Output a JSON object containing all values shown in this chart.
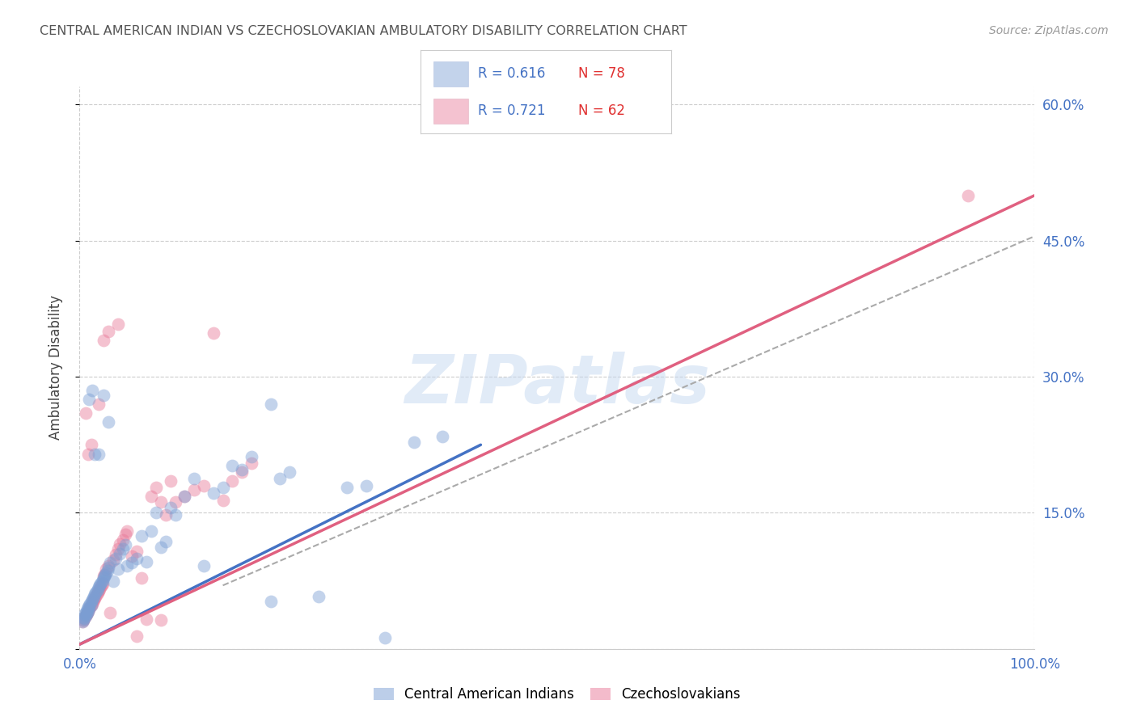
{
  "title": "CENTRAL AMERICAN INDIAN VS CZECHOSLOVAKIAN AMBULATORY DISABILITY CORRELATION CHART",
  "source": "Source: ZipAtlas.com",
  "ylabel": "Ambulatory Disability",
  "watermark": "ZIPatlas",
  "xlim": [
    0.0,
    1.0
  ],
  "ylim": [
    0.0,
    0.62
  ],
  "yticks": [
    0.0,
    0.15,
    0.3,
    0.45,
    0.6
  ],
  "ytick_labels": [
    "",
    "15.0%",
    "30.0%",
    "45.0%",
    "60.0%"
  ],
  "xtick_labels": [
    "0.0%",
    "100.0%"
  ],
  "blue_R": 0.616,
  "blue_N": 78,
  "pink_R": 0.721,
  "pink_N": 62,
  "blue_color": "#7B9FD4",
  "pink_color": "#E87898",
  "blue_legend": "Central American Indians",
  "pink_legend": "Czechoslovakians",
  "legend_R_color": "#4472C4",
  "legend_N_color": "#E03030",
  "axis_label_color": "#4472C4",
  "title_color": "#555555",
  "grid_color": "#CCCCCC",
  "background_color": "#FFFFFF",
  "blue_line_start_x": 0.0,
  "blue_line_start_y": 0.005,
  "blue_line_end_x": 0.42,
  "blue_line_end_y": 0.225,
  "pink_line_start_x": 0.0,
  "pink_line_start_y": 0.005,
  "pink_line_end_x": 1.0,
  "pink_line_end_y": 0.5,
  "dash_line_start_x": 0.15,
  "dash_line_start_y": 0.07,
  "dash_line_end_x": 1.0,
  "dash_line_end_y": 0.455,
  "blue_scatter_x": [
    0.003,
    0.004,
    0.004,
    0.005,
    0.005,
    0.006,
    0.006,
    0.007,
    0.007,
    0.008,
    0.008,
    0.009,
    0.009,
    0.01,
    0.01,
    0.011,
    0.012,
    0.012,
    0.013,
    0.014,
    0.015,
    0.016,
    0.017,
    0.018,
    0.019,
    0.02,
    0.021,
    0.022,
    0.023,
    0.024,
    0.025,
    0.026,
    0.027,
    0.028,
    0.029,
    0.03,
    0.032,
    0.035,
    0.038,
    0.04,
    0.042,
    0.045,
    0.048,
    0.05,
    0.055,
    0.06,
    0.065,
    0.07,
    0.075,
    0.08,
    0.085,
    0.09,
    0.095,
    0.1,
    0.11,
    0.12,
    0.13,
    0.14,
    0.15,
    0.16,
    0.17,
    0.18,
    0.2,
    0.21,
    0.22,
    0.25,
    0.28,
    0.3,
    0.32,
    0.35,
    0.38,
    0.01,
    0.013,
    0.016,
    0.02,
    0.025,
    0.03,
    0.2
  ],
  "blue_scatter_y": [
    0.03,
    0.032,
    0.035,
    0.034,
    0.038,
    0.036,
    0.04,
    0.038,
    0.042,
    0.04,
    0.044,
    0.042,
    0.046,
    0.044,
    0.048,
    0.05,
    0.048,
    0.052,
    0.054,
    0.056,
    0.058,
    0.06,
    0.062,
    0.064,
    0.066,
    0.068,
    0.07,
    0.072,
    0.074,
    0.076,
    0.078,
    0.08,
    0.082,
    0.084,
    0.086,
    0.09,
    0.095,
    0.075,
    0.1,
    0.088,
    0.105,
    0.11,
    0.115,
    0.092,
    0.095,
    0.1,
    0.125,
    0.096,
    0.13,
    0.15,
    0.112,
    0.118,
    0.156,
    0.148,
    0.168,
    0.188,
    0.092,
    0.172,
    0.178,
    0.202,
    0.198,
    0.212,
    0.052,
    0.188,
    0.195,
    0.058,
    0.178,
    0.18,
    0.012,
    0.228,
    0.234,
    0.275,
    0.285,
    0.215,
    0.215,
    0.28,
    0.25,
    0.27
  ],
  "pink_scatter_x": [
    0.003,
    0.004,
    0.005,
    0.006,
    0.007,
    0.008,
    0.009,
    0.01,
    0.011,
    0.012,
    0.013,
    0.014,
    0.015,
    0.016,
    0.017,
    0.018,
    0.019,
    0.02,
    0.021,
    0.022,
    0.023,
    0.024,
    0.025,
    0.026,
    0.028,
    0.03,
    0.032,
    0.035,
    0.038,
    0.04,
    0.042,
    0.045,
    0.048,
    0.05,
    0.055,
    0.06,
    0.065,
    0.07,
    0.075,
    0.08,
    0.085,
    0.09,
    0.095,
    0.1,
    0.11,
    0.12,
    0.13,
    0.14,
    0.15,
    0.16,
    0.17,
    0.18,
    0.006,
    0.009,
    0.012,
    0.02,
    0.025,
    0.03,
    0.04,
    0.06,
    0.085,
    0.93
  ],
  "pink_scatter_y": [
    0.03,
    0.032,
    0.034,
    0.036,
    0.038,
    0.04,
    0.042,
    0.044,
    0.046,
    0.048,
    0.05,
    0.052,
    0.054,
    0.056,
    0.058,
    0.06,
    0.062,
    0.064,
    0.066,
    0.068,
    0.07,
    0.072,
    0.08,
    0.082,
    0.088,
    0.092,
    0.04,
    0.098,
    0.104,
    0.11,
    0.116,
    0.12,
    0.126,
    0.13,
    0.102,
    0.108,
    0.078,
    0.033,
    0.168,
    0.178,
    0.032,
    0.148,
    0.185,
    0.162,
    0.168,
    0.175,
    0.18,
    0.348,
    0.164,
    0.185,
    0.195,
    0.205,
    0.26,
    0.215,
    0.225,
    0.27,
    0.34,
    0.35,
    0.358,
    0.014,
    0.162,
    0.5
  ]
}
